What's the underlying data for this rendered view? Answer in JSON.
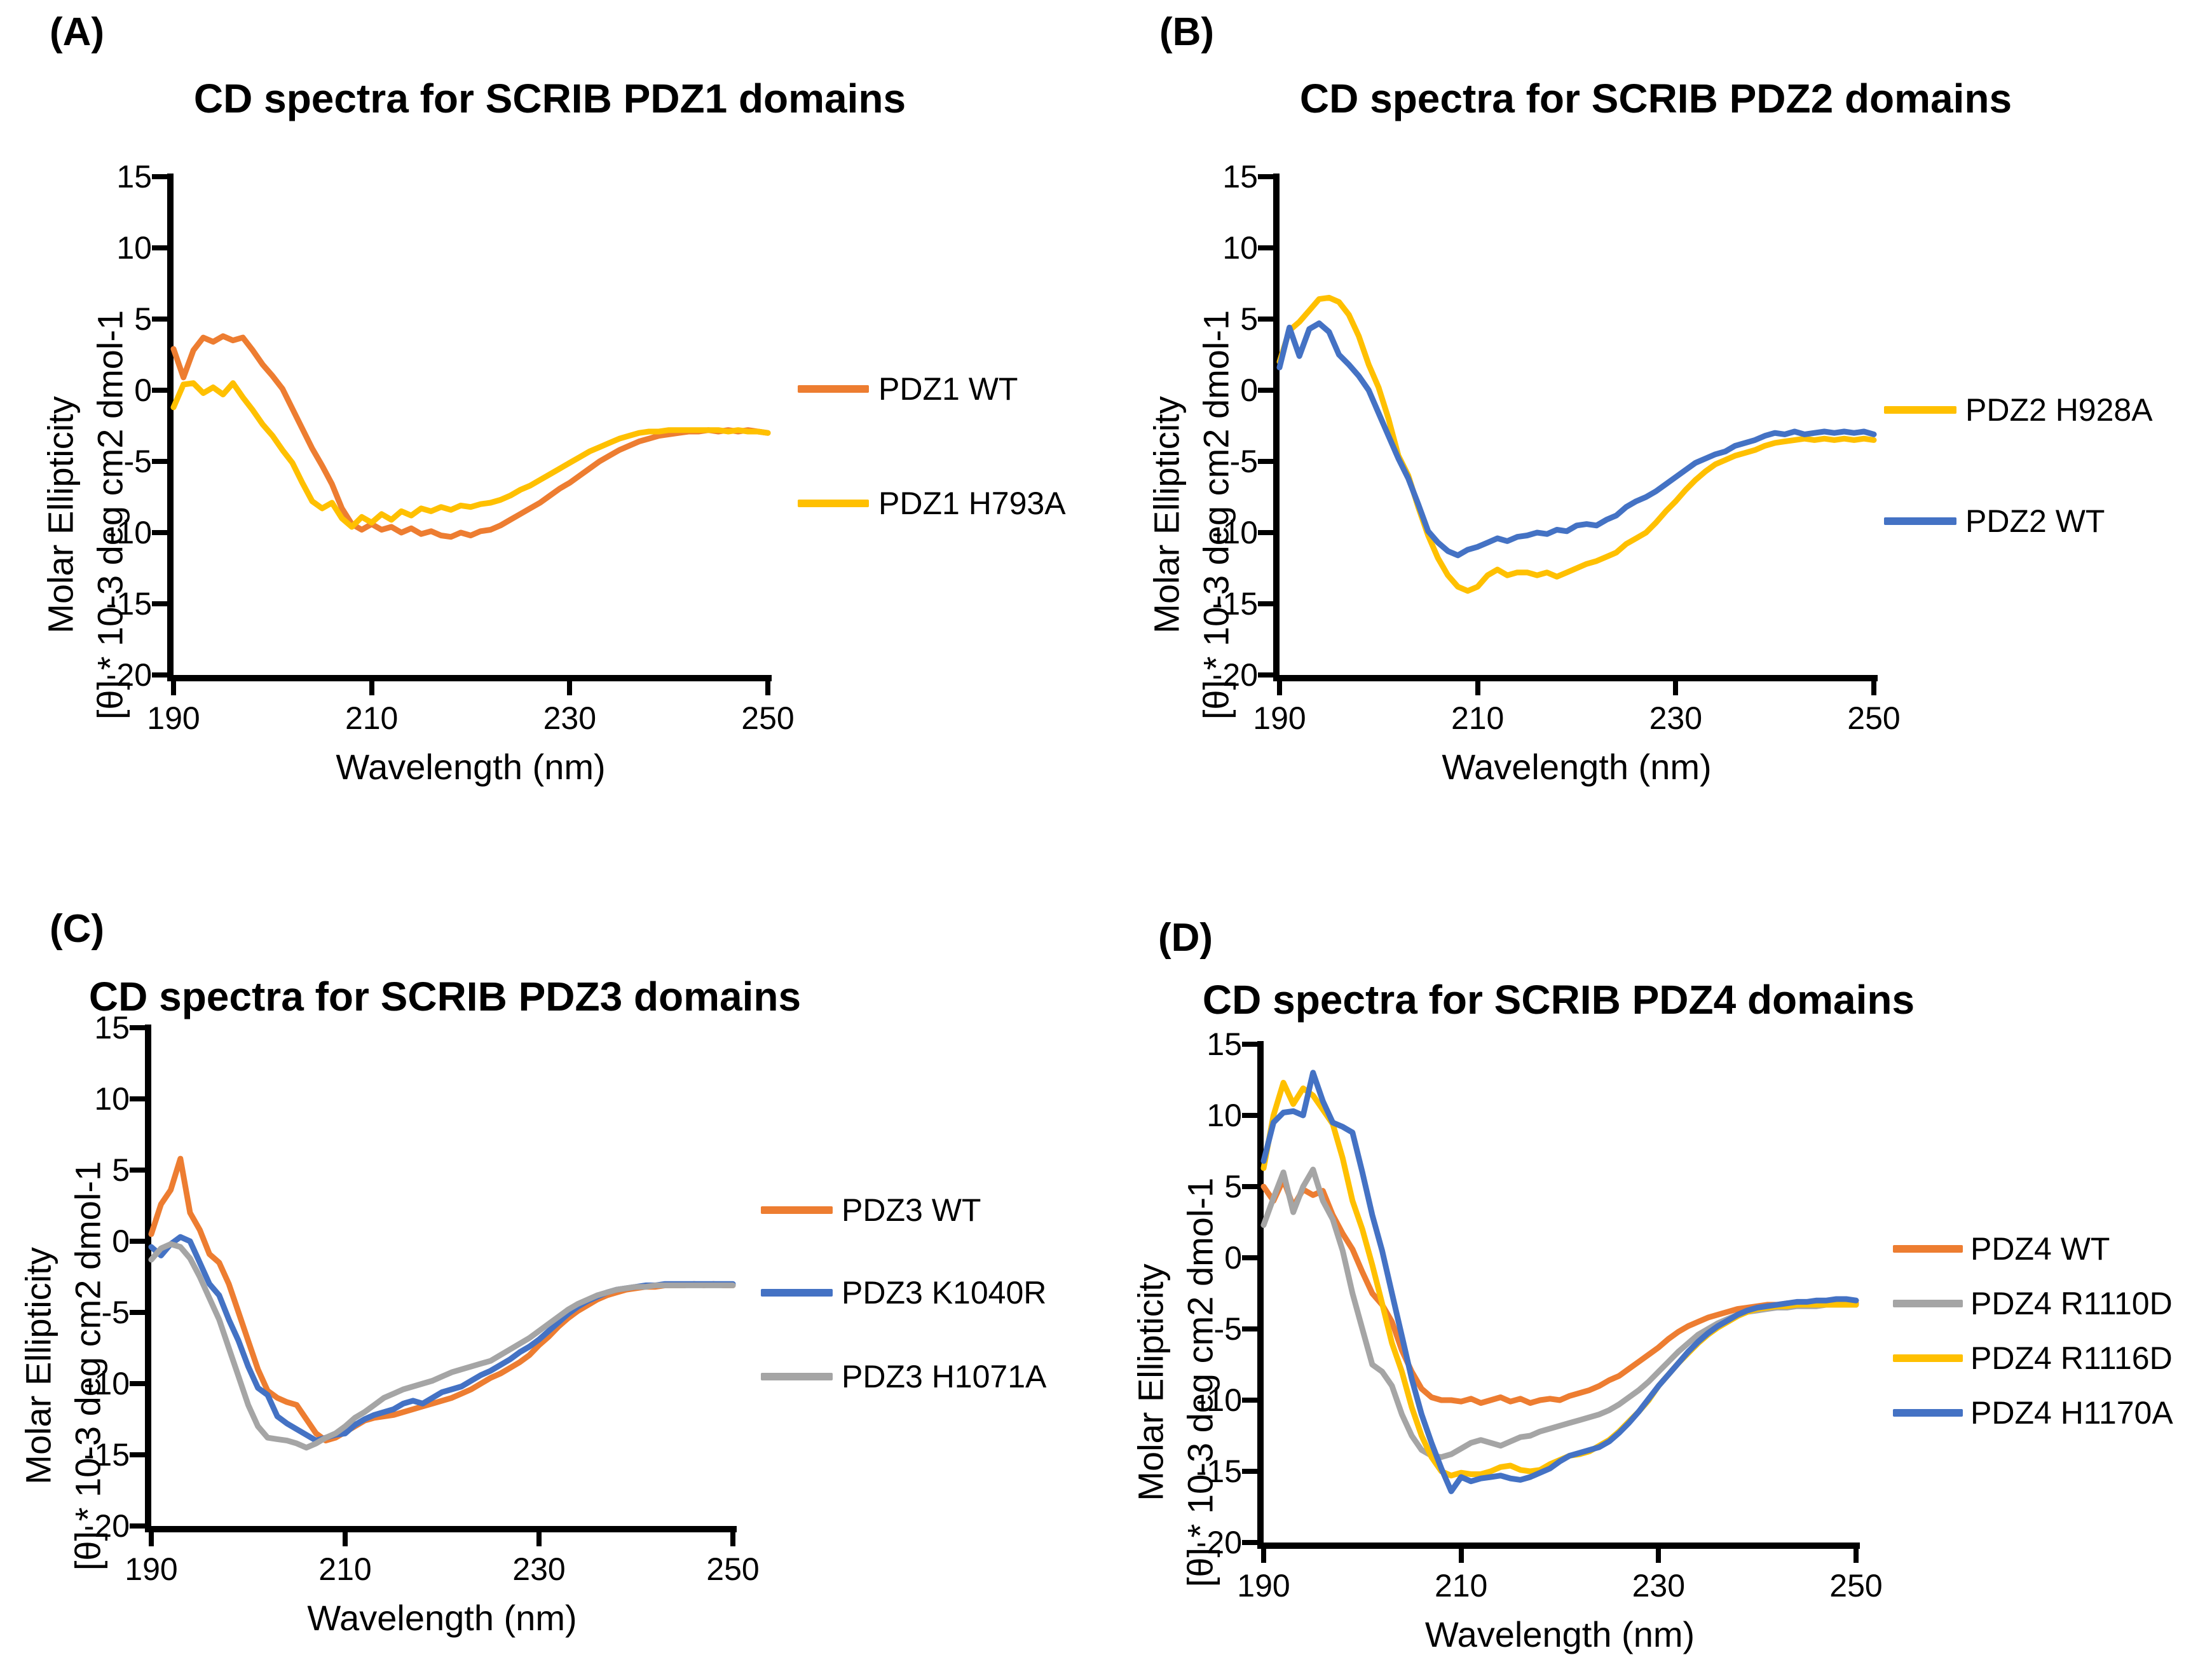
{
  "figure": {
    "background": "#ffffff",
    "text_color": "#000000",
    "accent_colors": {
      "orange": "#ED7D31",
      "yellow": "#FFC000",
      "blue": "#4472C4",
      "gray": "#A5A5A5"
    }
  },
  "chart_data": [
    {
      "panel_label": "(A)",
      "type": "line",
      "title": "CD spectra for SCRIB PDZ1 domains",
      "xlabel": "Wavelength (nm)",
      "ylabel_line1": "Molar Ellipticity",
      "ylabel_line2": "[θ] * 10-3 deg cm2 dmol-1",
      "xlim": [
        190,
        250
      ],
      "ylim": [
        -20,
        15
      ],
      "x_ticks": [
        190,
        210,
        230,
        250
      ],
      "y_ticks": [
        15,
        10,
        5,
        0,
        -5,
        -10,
        -15,
        -20
      ],
      "x_step_nm": 1,
      "grid": false,
      "legend_position": "right",
      "series": [
        {
          "name": "PDZ1 WT",
          "color": "#ED7D31",
          "values": [
            2.9,
            0.9,
            2.8,
            3.7,
            3.4,
            3.8,
            3.5,
            3.7,
            2.8,
            1.8,
            1.0,
            0.1,
            -1.3,
            -2.7,
            -4.1,
            -5.3,
            -6.6,
            -8.3,
            -9.4,
            -9.8,
            -9.4,
            -9.8,
            -9.6,
            -10.0,
            -9.7,
            -10.1,
            -9.9,
            -10.2,
            -10.3,
            -10.0,
            -10.2,
            -9.9,
            -9.8,
            -9.5,
            -9.1,
            -8.7,
            -8.3,
            -7.9,
            -7.4,
            -6.9,
            -6.5,
            -6.0,
            -5.5,
            -5.0,
            -4.6,
            -4.2,
            -3.9,
            -3.6,
            -3.4,
            -3.2,
            -3.1,
            -3.0,
            -2.9,
            -2.9,
            -2.8,
            -2.9,
            -2.8,
            -2.9,
            -2.8,
            -2.9,
            -3.0
          ]
        },
        {
          "name": "PDZ1 H793A",
          "color": "#FFC000",
          "values": [
            -1.2,
            0.4,
            0.5,
            -0.2,
            0.2,
            -0.3,
            0.5,
            -0.5,
            -1.4,
            -2.4,
            -3.2,
            -4.2,
            -5.1,
            -6.5,
            -7.8,
            -8.3,
            -7.9,
            -9.0,
            -9.6,
            -8.9,
            -9.3,
            -8.7,
            -9.1,
            -8.5,
            -8.8,
            -8.3,
            -8.5,
            -8.2,
            -8.4,
            -8.1,
            -8.2,
            -8.0,
            -7.9,
            -7.7,
            -7.4,
            -7.0,
            -6.7,
            -6.3,
            -5.9,
            -5.5,
            -5.1,
            -4.7,
            -4.3,
            -4.0,
            -3.7,
            -3.4,
            -3.2,
            -3.0,
            -2.9,
            -2.9,
            -2.8,
            -2.8,
            -2.8,
            -2.8,
            -2.8,
            -2.8,
            -2.9,
            -2.8,
            -2.9,
            -2.9,
            -3.0
          ]
        }
      ]
    },
    {
      "panel_label": "(B)",
      "type": "line",
      "title": "CD spectra for SCRIB PDZ2 domains",
      "xlabel": "Wavelength (nm)",
      "ylabel_line1": "Molar Ellipticity",
      "ylabel_line2": "[θ] * 10-3 deg cm2 dmol-1",
      "xlim": [
        190,
        250
      ],
      "ylim": [
        -20,
        15
      ],
      "x_ticks": [
        190,
        210,
        230,
        250
      ],
      "y_ticks": [
        15,
        10,
        5,
        0,
        -5,
        -10,
        -15,
        -20
      ],
      "x_step_nm": 1,
      "grid": false,
      "legend_position": "right",
      "series": [
        {
          "name": "PDZ2 H928A",
          "color": "#FFC000",
          "values": [
            2.0,
            4.2,
            4.8,
            5.6,
            6.4,
            6.5,
            6.2,
            5.3,
            3.8,
            1.8,
            0.2,
            -2.0,
            -4.6,
            -6.0,
            -8.2,
            -10.2,
            -11.8,
            -13.0,
            -13.8,
            -14.1,
            -13.8,
            -13.0,
            -12.6,
            -13.0,
            -12.8,
            -12.8,
            -13.0,
            -12.8,
            -13.1,
            -12.8,
            -12.5,
            -12.2,
            -12.0,
            -11.7,
            -11.4,
            -10.8,
            -10.4,
            -10.0,
            -9.3,
            -8.5,
            -7.8,
            -7.0,
            -6.3,
            -5.7,
            -5.2,
            -4.9,
            -4.6,
            -4.4,
            -4.2,
            -3.9,
            -3.7,
            -3.6,
            -3.5,
            -3.4,
            -3.5,
            -3.4,
            -3.5,
            -3.4,
            -3.5,
            -3.4,
            -3.5
          ]
        },
        {
          "name": "PDZ2 WT",
          "color": "#4472C4",
          "values": [
            1.6,
            4.4,
            2.4,
            4.3,
            4.7,
            4.1,
            2.5,
            1.8,
            1.0,
            0.0,
            -1.6,
            -3.2,
            -4.8,
            -6.2,
            -8.0,
            -9.9,
            -10.7,
            -11.3,
            -11.6,
            -11.2,
            -11.0,
            -10.7,
            -10.4,
            -10.6,
            -10.3,
            -10.2,
            -10.0,
            -10.1,
            -9.8,
            -9.9,
            -9.5,
            -9.4,
            -9.5,
            -9.1,
            -8.8,
            -8.2,
            -7.8,
            -7.5,
            -7.1,
            -6.6,
            -6.1,
            -5.6,
            -5.1,
            -4.8,
            -4.5,
            -4.3,
            -3.9,
            -3.7,
            -3.5,
            -3.2,
            -3.0,
            -3.1,
            -2.9,
            -3.1,
            -3.0,
            -2.9,
            -3.0,
            -2.9,
            -3.0,
            -2.9,
            -3.1
          ]
        }
      ]
    },
    {
      "panel_label": "(C)",
      "type": "line",
      "title": "CD spectra for SCRIB PDZ3 domains",
      "xlabel": "Wavelength (nm)",
      "ylabel_line1": "Molar Ellipticity",
      "ylabel_line2": "[θ] * 10-3 deg cm2 dmol-1",
      "xlim": [
        190,
        250
      ],
      "ylim": [
        -20,
        15
      ],
      "x_ticks": [
        190,
        210,
        230,
        250
      ],
      "y_ticks": [
        15,
        10,
        5,
        0,
        -5,
        -10,
        -15,
        -20
      ],
      "x_step_nm": 1,
      "grid": false,
      "legend_position": "right",
      "series": [
        {
          "name": "PDZ3 WT",
          "color": "#ED7D31",
          "values": [
            0.5,
            2.6,
            3.6,
            5.8,
            2.0,
            0.8,
            -0.9,
            -1.5,
            -3.0,
            -5.0,
            -7.0,
            -9.0,
            -10.5,
            -11.0,
            -11.3,
            -11.5,
            -12.5,
            -13.5,
            -14.0,
            -13.8,
            -13.4,
            -13.0,
            -12.6,
            -12.4,
            -12.3,
            -12.2,
            -12.0,
            -11.8,
            -11.6,
            -11.4,
            -11.2,
            -11.0,
            -10.7,
            -10.4,
            -10.0,
            -9.6,
            -9.3,
            -8.9,
            -8.5,
            -8.0,
            -7.3,
            -6.7,
            -6.0,
            -5.4,
            -4.9,
            -4.5,
            -4.1,
            -3.8,
            -3.6,
            -3.4,
            -3.3,
            -3.2,
            -3.2,
            -3.1,
            -3.1,
            -3.1,
            -3.0,
            -3.1,
            -3.0,
            -3.1,
            -3.1
          ]
        },
        {
          "name": "PDZ3 K1040R",
          "color": "#4472C4",
          "values": [
            -0.4,
            -1.0,
            -0.2,
            0.3,
            0.0,
            -1.5,
            -3.0,
            -3.8,
            -5.5,
            -7.0,
            -8.8,
            -10.3,
            -10.8,
            -12.3,
            -12.8,
            -13.2,
            -13.6,
            -14.0,
            -13.8,
            -13.6,
            -13.5,
            -12.9,
            -12.5,
            -12.2,
            -12.0,
            -11.8,
            -11.4,
            -11.2,
            -11.4,
            -11.0,
            -10.6,
            -10.4,
            -10.2,
            -9.8,
            -9.4,
            -9.1,
            -8.7,
            -8.3,
            -7.8,
            -7.4,
            -6.9,
            -6.3,
            -5.7,
            -5.1,
            -4.6,
            -4.2,
            -3.9,
            -3.6,
            -3.4,
            -3.3,
            -3.2,
            -3.1,
            -3.1,
            -3.0,
            -3.0,
            -3.0,
            -3.0,
            -3.0,
            -3.0,
            -3.0,
            -3.0
          ]
        },
        {
          "name": "PDZ3 H1071A",
          "color": "#A5A5A5",
          "values": [
            -1.3,
            -0.5,
            -0.2,
            -0.4,
            -1.2,
            -2.5,
            -4.0,
            -5.5,
            -7.5,
            -9.5,
            -11.5,
            -13.0,
            -13.8,
            -13.9,
            -14.0,
            -14.2,
            -14.5,
            -14.2,
            -13.8,
            -13.5,
            -13.0,
            -12.4,
            -12.0,
            -11.5,
            -11.0,
            -10.7,
            -10.4,
            -10.2,
            -10.0,
            -9.8,
            -9.5,
            -9.2,
            -9.0,
            -8.8,
            -8.6,
            -8.4,
            -8.0,
            -7.6,
            -7.2,
            -6.8,
            -6.3,
            -5.8,
            -5.3,
            -4.8,
            -4.4,
            -4.1,
            -3.8,
            -3.6,
            -3.4,
            -3.3,
            -3.2,
            -3.2,
            -3.1,
            -3.1,
            -3.1,
            -3.1,
            -3.1,
            -3.1,
            -3.1,
            -3.1,
            -3.1
          ]
        }
      ]
    },
    {
      "panel_label": "(D)",
      "type": "line",
      "title": "CD spectra for SCRIB PDZ4 domains",
      "xlabel": "Wavelength (nm)",
      "ylabel_line1": "Molar Ellipticity",
      "ylabel_line2": "[θ] * 10-3 deg cm2 dmol-1",
      "xlim": [
        190,
        250
      ],
      "ylim": [
        -20,
        15
      ],
      "x_ticks": [
        190,
        210,
        230,
        250
      ],
      "y_ticks": [
        15,
        10,
        5,
        0,
        -5,
        -10,
        -15,
        -20
      ],
      "x_step_nm": 1,
      "grid": false,
      "legend_position": "right",
      "series": [
        {
          "name": "PDZ4 WT",
          "color": "#ED7D31",
          "values": [
            5.0,
            4.0,
            5.5,
            3.6,
            4.8,
            4.4,
            4.7,
            3.0,
            1.7,
            0.6,
            -1.0,
            -2.5,
            -3.3,
            -4.5,
            -6.5,
            -8.0,
            -9.2,
            -9.8,
            -10.0,
            -10.0,
            -10.1,
            -9.9,
            -10.2,
            -10.0,
            -9.8,
            -10.1,
            -9.9,
            -10.2,
            -10.0,
            -9.9,
            -10.0,
            -9.7,
            -9.5,
            -9.3,
            -9.0,
            -8.6,
            -8.3,
            -7.8,
            -7.3,
            -6.8,
            -6.3,
            -5.7,
            -5.2,
            -4.8,
            -4.5,
            -4.2,
            -4.0,
            -3.8,
            -3.6,
            -3.5,
            -3.4,
            -3.3,
            -3.3,
            -3.2,
            -3.2,
            -3.2,
            -3.2,
            -3.2,
            -3.2,
            -3.2,
            -3.2
          ]
        },
        {
          "name": "PDZ4 R1110D",
          "color": "#A5A5A5",
          "values": [
            2.3,
            4.2,
            6.0,
            3.2,
            5.0,
            6.2,
            4.0,
            2.7,
            0.5,
            -2.5,
            -5.0,
            -7.5,
            -8.0,
            -9.0,
            -11.0,
            -12.5,
            -13.5,
            -13.9,
            -14.0,
            -13.8,
            -13.4,
            -13.0,
            -12.8,
            -13.0,
            -13.2,
            -12.9,
            -12.6,
            -12.5,
            -12.2,
            -12.0,
            -11.8,
            -11.6,
            -11.4,
            -11.2,
            -11.0,
            -10.7,
            -10.3,
            -9.8,
            -9.3,
            -8.7,
            -8.0,
            -7.3,
            -6.6,
            -6.0,
            -5.4,
            -5.0,
            -4.6,
            -4.3,
            -4.0,
            -3.8,
            -3.7,
            -3.6,
            -3.5,
            -3.5,
            -3.4,
            -3.4,
            -3.4,
            -3.3,
            -3.3,
            -3.3,
            -3.3
          ]
        },
        {
          "name": "PDZ4 R1116D",
          "color": "#FFC000",
          "values": [
            6.3,
            10.0,
            12.3,
            10.8,
            11.9,
            11.4,
            10.4,
            9.4,
            7.0,
            4.0,
            2.0,
            -0.5,
            -3.2,
            -6.0,
            -8.0,
            -10.5,
            -12.5,
            -14.0,
            -15.0,
            -15.3,
            -15.1,
            -15.2,
            -15.2,
            -15.0,
            -14.7,
            -14.6,
            -14.9,
            -15.0,
            -14.9,
            -14.5,
            -14.2,
            -13.9,
            -13.8,
            -13.6,
            -13.2,
            -12.8,
            -12.2,
            -11.5,
            -10.8,
            -10.0,
            -9.0,
            -8.2,
            -7.4,
            -6.7,
            -6.0,
            -5.4,
            -4.9,
            -4.5,
            -4.1,
            -3.8,
            -3.6,
            -3.5,
            -3.4,
            -3.4,
            -3.3,
            -3.3,
            -3.3,
            -3.3,
            -3.3,
            -3.3,
            -3.3
          ]
        },
        {
          "name": "PDZ4 H1170A",
          "color": "#4472C4",
          "values": [
            6.8,
            9.5,
            10.2,
            10.3,
            10.0,
            13.0,
            11.0,
            9.5,
            9.2,
            8.8,
            6.0,
            3.0,
            0.5,
            -2.5,
            -5.5,
            -8.5,
            -11.0,
            -13.0,
            -14.8,
            -16.4,
            -15.4,
            -15.7,
            -15.5,
            -15.4,
            -15.3,
            -15.5,
            -15.6,
            -15.4,
            -15.1,
            -14.8,
            -14.3,
            -13.9,
            -13.7,
            -13.5,
            -13.3,
            -12.9,
            -12.3,
            -11.6,
            -10.8,
            -9.9,
            -9.0,
            -8.2,
            -7.4,
            -6.6,
            -5.9,
            -5.3,
            -4.8,
            -4.4,
            -4.0,
            -3.7,
            -3.5,
            -3.4,
            -3.3,
            -3.2,
            -3.1,
            -3.1,
            -3.0,
            -3.0,
            -2.9,
            -2.9,
            -3.0
          ]
        }
      ]
    }
  ]
}
